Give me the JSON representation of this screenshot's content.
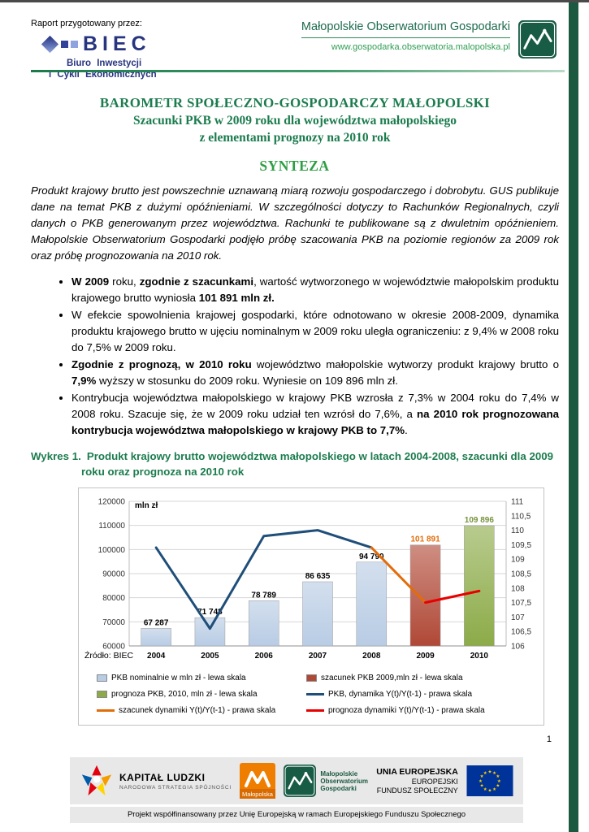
{
  "page": {
    "number": "1"
  },
  "colors": {
    "heading_teal": "#1c7c4e",
    "synteza_green": "#2e9e44",
    "edge_bar_green": "#1b5a41",
    "biec_navy": "#27357f",
    "bar_nominal": "#b8cce4",
    "bar_estimate": "#b04836",
    "bar_forecast": "#8cab48",
    "line_dynamics": "#1f4e79",
    "line_estimate_dynamics": "#e36c0a",
    "line_forecast_dynamics": "#e80000"
  },
  "header": {
    "prepared_by": "Raport przygotowany przez:",
    "biec": {
      "name": "BIEC",
      "sub1": "Biuro Inwestycji",
      "sub2": "i Cykli Ekonomicznych"
    },
    "observatory": {
      "name": "Małopolskie Obserwatorium Gospodarki",
      "url": "www.gospodarka.obserwatoria.malopolska.pl"
    }
  },
  "title": {
    "line1": "BAROMETR SPOŁECZNO-GOSPODARCZY MAŁOPOLSKI",
    "line2": "Szacunki PKB w 2009 roku dla województwa małopolskiego",
    "line3": "z elementami prognozy na 2010 rok"
  },
  "synteza": {
    "heading": "SYNTEZA",
    "intro": "Produkt krajowy brutto jest powszechnie uznawaną miarą rozwoju gospodarczego i dobrobytu. GUS publikuje dane na temat PKB z dużymi opóźnieniami. W szczególności dotyczy to Rachunków Regionalnych, czyli danych o PKB generowanym przez województwa. Rachunki te publikowane są z dwuletnim opóźnieniem. Małopolskie Obserwatorium Gospodarki podjęło próbę szacowania PKB na poziomie regionów za 2009 rok oraz próbę prognozowania na 2010 rok.",
    "bullets": [
      [
        {
          "t": "W 2009",
          "b": true
        },
        {
          "t": " roku, ",
          "b": false
        },
        {
          "t": "zgodnie z szacunkami",
          "b": true
        },
        {
          "t": ", wartość wytworzonego w województwie małopolskim produktu krajowego brutto wyniosła ",
          "b": false
        },
        {
          "t": "101 891 mln zł.",
          "b": true
        }
      ],
      [
        {
          "t": "W efekcie spowolnienia krajowej gospodarki, które odnotowano w okresie 2008-2009, dynamika produktu krajowego brutto w ujęciu nominalnym w 2009 roku uległa ograniczeniu: z 9,4% w 2008 roku do 7,5% w 2009 roku.",
          "b": false
        }
      ],
      [
        {
          "t": "Zgodnie z prognozą, w 2010 roku",
          "b": true
        },
        {
          "t": " województwo małopolskie wytworzy produkt krajowy brutto o ",
          "b": false
        },
        {
          "t": "7,9%",
          "b": true
        },
        {
          "t": " wyższy w stosunku do 2009 roku. Wyniesie on 109 896 mln zł.",
          "b": false
        }
      ],
      [
        {
          "t": "Kontrybucja województwa małopolskiego w krajowy PKB wzrosła z 7,3% w 2004 roku do 7,4% w 2008 roku. Szacuje się, że w 2009 roku udział ten wzrósł do 7,6%, a ",
          "b": false
        },
        {
          "t": "na 2010 rok prognozowana kontrybucja województwa małopolskiego w krajowy PKB to 7,7%",
          "b": true
        },
        {
          "t": ".",
          "b": false
        }
      ]
    ]
  },
  "chart_caption": {
    "label": "Wykres 1.",
    "text": "Produkt krajowy brutto województwa małopolskiego w latach 2004-2008, szacunki dla 2009 roku oraz prognoza na 2010 rok"
  },
  "chart_data": {
    "type": "bar+line combo",
    "unit_label": "mln zł",
    "source": "Źródło: BIEC",
    "categories": [
      "2004",
      "2005",
      "2006",
      "2007",
      "2008",
      "2009",
      "2010"
    ],
    "left_axis": {
      "min": 60000,
      "max": 120000,
      "step": 10000,
      "ticks": [
        "60000",
        "70000",
        "80000",
        "90000",
        "100000",
        "110000",
        "120000"
      ]
    },
    "right_axis": {
      "min": 106,
      "max": 111,
      "step": 0.5,
      "ticks": [
        "106",
        "106,5",
        "107",
        "107,5",
        "108",
        "108,5",
        "109",
        "109,5",
        "110",
        "110,5",
        "111"
      ]
    },
    "bars": {
      "values": [
        67287,
        71748,
        78789,
        86635,
        94790,
        101891,
        109896
      ],
      "labels": [
        "67 287",
        "71 748",
        "78 789",
        "86 635",
        "94 790",
        "101 891",
        "109 896"
      ],
      "colors": [
        "#b8cce4",
        "#b8cce4",
        "#b8cce4",
        "#b8cce4",
        "#b8cce4",
        "#b04836",
        "#8cab48"
      ],
      "label_colors": [
        "#000000",
        "#000000",
        "#000000",
        "#000000",
        "#000000",
        "#e36c0a",
        "#77933c"
      ]
    },
    "series": [
      {
        "name": "PKB, dynamika Y(t)/Y(t-1) - prawa skala",
        "color": "#1f4e79",
        "points": [
          [
            0,
            109.4
          ],
          [
            1,
            106.6
          ],
          [
            2,
            109.8
          ],
          [
            3,
            110.0
          ],
          [
            4,
            109.4
          ]
        ]
      },
      {
        "name": "szacunek dynamiki Y(t)/Y(t-1) - prawa skala",
        "color": "#e36c0a",
        "points": [
          [
            4,
            109.4
          ],
          [
            5,
            107.5
          ]
        ]
      },
      {
        "name": "prognoza dynamiki Y(t)/Y(t-1) - prawa skala",
        "color": "#e80000",
        "points": [
          [
            5,
            107.5
          ],
          [
            6,
            107.9
          ]
        ]
      }
    ],
    "legend": [
      {
        "label": "PKB nominalnie w mln zł - lewa skala",
        "swatch": "rect",
        "color": "#b8cce4"
      },
      {
        "label": "szacunek PKB 2009,mln zł - lewa skala",
        "swatch": "rect",
        "color": "#b04836"
      },
      {
        "label": "prognoza PKB, 2010, mln zł - lewa skala",
        "swatch": "rect",
        "color": "#8cab48"
      },
      {
        "label": "PKB, dynamika Y(t)/Y(t-1) - prawa skala",
        "swatch": "line",
        "color": "#1f4e79"
      },
      {
        "label": "szacunek dynamiki Y(t)/Y(t-1) - prawa skala",
        "swatch": "line",
        "color": "#e36c0a"
      },
      {
        "label": "prognoza dynamiki Y(t)/Y(t-1) - prawa skala",
        "swatch": "line",
        "color": "#e80000"
      }
    ],
    "legend_position": "bottom",
    "grid": true
  },
  "footer": {
    "kapital": {
      "title": "KAPITAŁ LUDZKI",
      "subtitle": "NARODOWA STRATEGIA SPÓJNOŚCI"
    },
    "malopolska_label": "Małopolska",
    "observatory": {
      "line1": "Małopolskie",
      "line2": "Obserwatorium",
      "line3": "Gospodarki"
    },
    "eu": {
      "line1": "UNIA EUROPEJSKA",
      "line2": "EUROPEJSKI",
      "line3": "FUNDUSZ SPOŁECZNY"
    },
    "caption": "Projekt współfinansowany przez Unię Europejską w ramach Europejskiego Funduszu Społecznego"
  }
}
